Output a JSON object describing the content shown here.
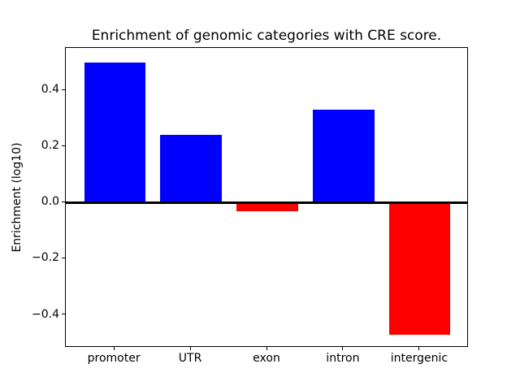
{
  "chart_data": {
    "type": "bar",
    "title": "Enrichment of genomic categories with CRE score.",
    "xlabel": "",
    "ylabel": "Enrichment (log10)",
    "categories": [
      "promoter",
      "UTR",
      "exon",
      "intron",
      "intergenic"
    ],
    "values": [
      0.5,
      0.24,
      -0.03,
      0.33,
      -0.47
    ],
    "bar_colors": [
      "#0000ff",
      "#0000ff",
      "#ff0000",
      "#0000ff",
      "#ff0000"
    ],
    "positive_color": "#0000ff",
    "negative_color": "#ff0000",
    "yticks": [
      -0.4,
      -0.2,
      0.0,
      0.2,
      0.4
    ],
    "ytick_labels": [
      "−0.4",
      "−0.2",
      "0.0",
      "0.2",
      "0.4"
    ],
    "ylim": [
      -0.517,
      0.551
    ],
    "xlim": [
      -0.64,
      4.64
    ],
    "bar_width_fraction": 0.8,
    "zero_line": true,
    "grid": false,
    "legend": null,
    "background_color": "#ffffff",
    "axis_color": "#000000"
  }
}
